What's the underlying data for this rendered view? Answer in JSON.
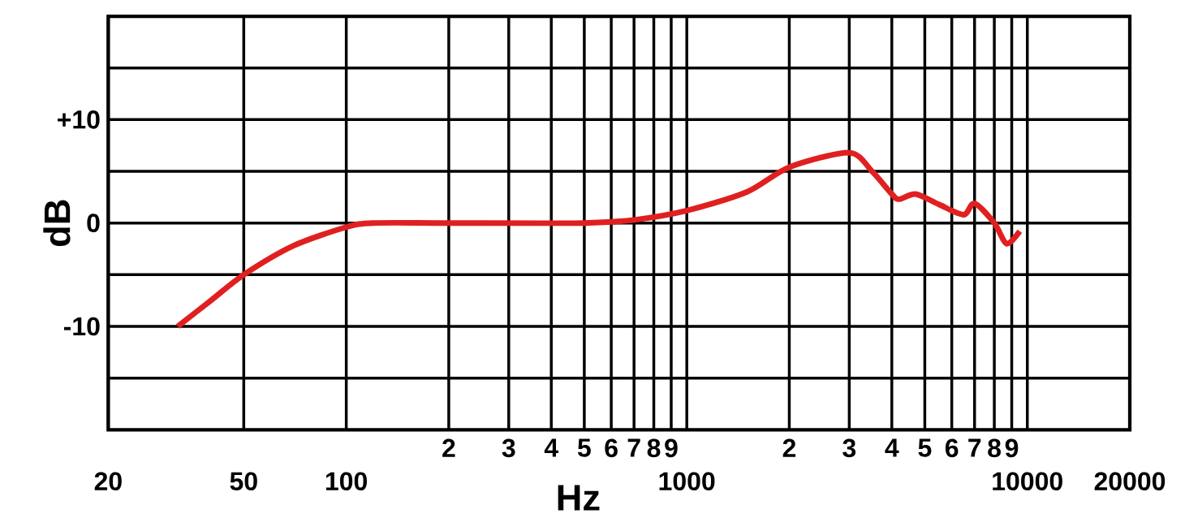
{
  "chart_data": {
    "type": "line",
    "xlabel": "Hz",
    "ylabel": "dB",
    "log": "x",
    "grid": true,
    "xlim": [
      20,
      20000
    ],
    "ylim": [
      -20,
      20
    ],
    "xticks": [
      20,
      50,
      100,
      {
        "value": 200,
        "label": null
      },
      {
        "value": 300,
        "label": null
      },
      {
        "value": 400,
        "label": null
      },
      {
        "value": 500,
        "label": null
      },
      {
        "value": 600,
        "label": null
      },
      {
        "value": 700,
        "label": null
      },
      {
        "value": 800,
        "label": null
      },
      {
        "value": 900,
        "label": null
      },
      1000,
      {
        "value": 2000,
        "label": null
      },
      {
        "value": 3000,
        "label": null
      },
      {
        "value": 4000,
        "label": null
      },
      {
        "value": 5000,
        "label": null
      },
      {
        "value": 6000,
        "label": null
      },
      {
        "value": 7000,
        "label": null
      },
      {
        "value": 8000,
        "label": null
      },
      {
        "value": 9000,
        "label": null
      },
      10000,
      20000
    ],
    "yticks": [
      {
        "value": -15,
        "label": null
      },
      {
        "value": -10,
        "label": "-10"
      },
      {
        "value": -5,
        "label": null
      },
      0,
      {
        "value": 5,
        "label": null
      },
      {
        "value": 10,
        "label": "+10"
      },
      {
        "value": 15,
        "label": null
      }
    ],
    "annotations": [
      "2",
      "3",
      "4",
      "5",
      "6",
      "7",
      "8",
      "9",
      "2",
      "3",
      "4",
      "5",
      "6",
      "7",
      "8",
      "9"
    ],
    "x": [
      32,
      40,
      50,
      70,
      100,
      120,
      200,
      500,
      700,
      1000,
      1500,
      2000,
      3000,
      3500,
      4000,
      4200,
      4700,
      5500,
      6500,
      7000,
      8000,
      8700,
      9500
    ],
    "series": [
      {
        "color": "#e02020",
        "values": [
          -10,
          -7.5,
          -5,
          -2.2,
          -0.4,
          0,
          0,
          0,
          0.3,
          1.2,
          3,
          5.4,
          6.8,
          5,
          2.8,
          2.3,
          2.8,
          1.8,
          0.8,
          1.9,
          0,
          -2,
          -0.8
        ]
      }
    ]
  }
}
